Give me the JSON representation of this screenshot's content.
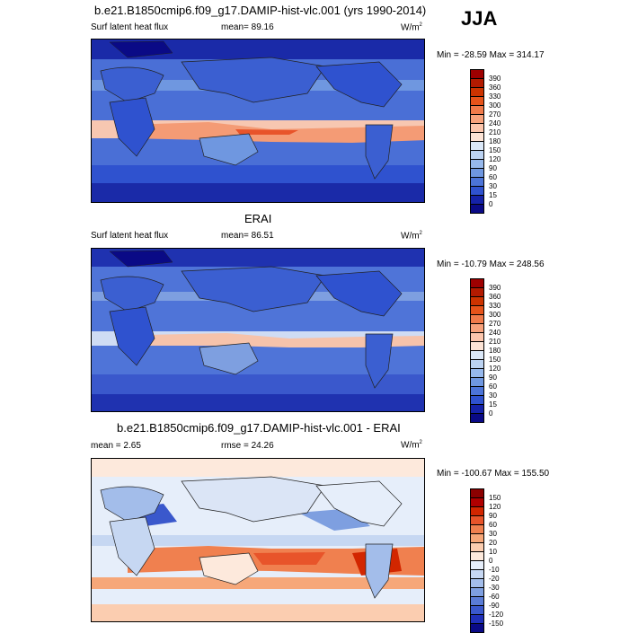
{
  "season": "JJA",
  "panels": [
    {
      "title": "b.e21.B1850cmip6.f09_g17.DAMIP-hist-vlc.001 (yrs 1990-2014)",
      "left_label": "Surf latent heat flux",
      "mean_text": "mean=  89.16",
      "units": "W/m",
      "units_sup": "2",
      "minmax": "Min = -28.59 Max = 314.17",
      "colorbar": [
        "390",
        "360",
        "330",
        "300",
        "270",
        "240",
        "210",
        "180",
        "150",
        "120",
        "90",
        "60",
        "30",
        "15",
        "0"
      ],
      "colors": [
        "#9e0000",
        "#b31a00",
        "#cc3300",
        "#e6531a",
        "#f07a4a",
        "#f7a27c",
        "#fcc6ad",
        "#fde4d6",
        "#dbe8f8",
        "#bcd3f2",
        "#96b8ec",
        "#6f97e0",
        "#4c74d8",
        "#2f52cf",
        "#1522a8",
        "#0a0a86"
      ]
    },
    {
      "title": "ERAI",
      "left_label": "Surf latent heat flux",
      "mean_text": "mean=  86.51",
      "units": "W/m",
      "units_sup": "2",
      "minmax": "Min = -10.79 Max = 248.56",
      "colorbar": [
        "390",
        "360",
        "330",
        "300",
        "270",
        "240",
        "210",
        "180",
        "150",
        "120",
        "90",
        "60",
        "30",
        "15",
        "0"
      ],
      "colors": [
        "#9e0000",
        "#b31a00",
        "#cc3300",
        "#e6531a",
        "#f07a4a",
        "#f7a27c",
        "#fcc6ad",
        "#fde4d6",
        "#dbe8f8",
        "#bcd3f2",
        "#96b8ec",
        "#6f97e0",
        "#4c74d8",
        "#2f52cf",
        "#1522a8",
        "#0a0a86"
      ]
    },
    {
      "title": "b.e21.B1850cmip6.f09_g17.DAMIP-hist-vlc.001 - ERAI",
      "left_label": "mean =   2.65",
      "mean_text": "rmse =  24.26",
      "units": "W/m",
      "units_sup": "2",
      "minmax": "Min = -100.67 Max = 155.50",
      "colorbar": [
        "150",
        "120",
        "90",
        "60",
        "30",
        "20",
        "10",
        "0",
        "-10",
        "-20",
        "-30",
        "-60",
        "-90",
        "-120",
        "-150"
      ],
      "colors": [
        "#8b0000",
        "#b00000",
        "#d22600",
        "#e8542a",
        "#f0804f",
        "#f6a779",
        "#fbcdb0",
        "#fde9dc",
        "#e6eefa",
        "#c6d7f2",
        "#a3bdea",
        "#7e9fe0",
        "#5a7cd6",
        "#3a58cc",
        "#1f2fb8",
        "#0a0a86"
      ]
    }
  ]
}
